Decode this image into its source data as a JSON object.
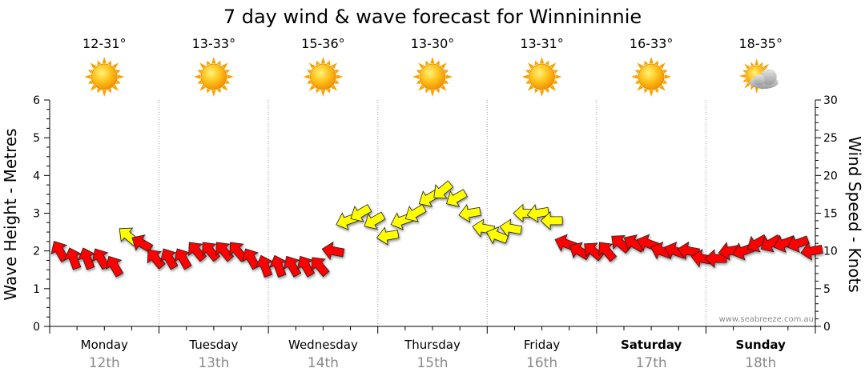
{
  "chart_data": {
    "type": "line",
    "title": "7 day wind & wave forecast for Winnininnie",
    "ylabel_left": "Wave Height - Metres",
    "ylabel_right": "Wind Speed - Knots",
    "ylim_left": [
      0,
      6
    ],
    "ylim_right": [
      0,
      30
    ],
    "yticks_left": [
      "0",
      "1",
      "2",
      "3",
      "4",
      "5",
      "6"
    ],
    "yticks_right": [
      "0",
      "5",
      "10",
      "15",
      "20",
      "25",
      "30"
    ],
    "watermark": "www.seabreeze.com.au",
    "colors": {
      "wind_strong": "#ff0000",
      "wind_moderate": "#ffff00",
      "outline": "#222222",
      "grid": "#9a9a9a"
    },
    "days": [
      {
        "day": "Monday",
        "date": "12th",
        "temp": "12-31°",
        "weather_icon": "sun-icon",
        "bold": false
      },
      {
        "day": "Tuesday",
        "date": "13th",
        "temp": "13-33°",
        "weather_icon": "sun-icon",
        "bold": false
      },
      {
        "day": "Wednesday",
        "date": "14th",
        "temp": "15-36°",
        "weather_icon": "sun-icon",
        "bold": false
      },
      {
        "day": "Thursday",
        "date": "15th",
        "temp": "13-30°",
        "weather_icon": "sun-icon",
        "bold": false
      },
      {
        "day": "Friday",
        "date": "16th",
        "temp": "13-31°",
        "weather_icon": "sun-icon",
        "bold": false
      },
      {
        "day": "Saturday",
        "date": "17th",
        "temp": "16-33°",
        "weather_icon": "sun-icon",
        "bold": true
      },
      {
        "day": "Sunday",
        "date": "18th",
        "temp": "18-35°",
        "weather_icon": "sun-cloud-icon",
        "bold": true
      }
    ],
    "series": [
      {
        "name": "Wind Speed (knots)",
        "axis": "right",
        "x_unit": "days from Monday 00:00",
        "x": [
          0.0,
          0.125,
          0.25,
          0.375,
          0.5,
          0.625,
          0.75,
          0.875,
          1.0,
          1.125,
          1.25,
          1.375,
          1.5,
          1.625,
          1.75,
          1.875,
          2.0,
          2.125,
          2.25,
          2.375,
          2.5,
          2.625,
          2.75,
          2.875,
          3.0,
          3.125,
          3.25,
          3.375,
          3.5,
          3.625,
          3.75,
          3.875,
          4.0,
          4.125,
          4.25,
          4.375,
          4.5,
          4.625,
          4.75,
          4.875,
          5.0,
          5.125,
          5.25,
          5.375,
          5.5,
          5.625,
          5.75,
          5.875,
          6.0,
          6.125,
          6.25,
          6.375,
          6.5,
          6.625,
          6.75,
          6.875
        ],
        "values": [
          10,
          9,
          9,
          9,
          8,
          12,
          11,
          9,
          9,
          9,
          10,
          10,
          10,
          10,
          9,
          8,
          8,
          8,
          8,
          8,
          10,
          14,
          15,
          14,
          12,
          14,
          15,
          17,
          18,
          17,
          15,
          13,
          12,
          13,
          15,
          15,
          14,
          11,
          10,
          10,
          10,
          11,
          11,
          11,
          10,
          10,
          10,
          9,
          9,
          10,
          10,
          11,
          11,
          11,
          11,
          10
        ],
        "directions_deg": [
          150,
          160,
          160,
          150,
          150,
          130,
          120,
          140,
          150,
          150,
          140,
          140,
          140,
          140,
          150,
          160,
          160,
          150,
          150,
          140,
          100,
          70,
          60,
          60,
          80,
          70,
          60,
          60,
          50,
          60,
          80,
          100,
          110,
          100,
          90,
          80,
          90,
          110,
          120,
          130,
          140,
          130,
          120,
          110,
          110,
          110,
          100,
          100,
          90,
          80,
          70,
          60,
          60,
          70,
          70,
          80
        ]
      }
    ]
  }
}
